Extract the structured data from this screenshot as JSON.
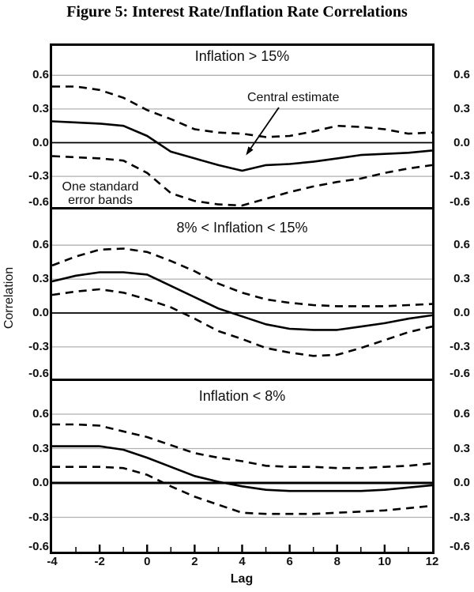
{
  "figure_title": "Figure 5: Interest Rate/Inflation Rate Correlations",
  "axes": {
    "ylabel": "Correlation",
    "xlabel": "Lag",
    "y_ticks": [
      "0.6",
      "0.3",
      "0.0",
      "-0.3",
      "-0.6"
    ],
    "y_tick_values": [
      0.6,
      0.3,
      0.0,
      -0.3,
      -0.6
    ],
    "x_tick_labels": [
      "-4",
      "-2",
      "0",
      "2",
      "4",
      "6",
      "8",
      "10",
      "12"
    ],
    "x_tick_values": [
      -4,
      -2,
      0,
      2,
      4,
      6,
      8,
      10,
      12
    ]
  },
  "annotations": {
    "central_estimate": "Central estimate",
    "error_bands_line1": "One standard",
    "error_bands_line2": "error bands"
  },
  "colors": {
    "line": "#000000",
    "grid": "#b0b0b0",
    "text": "#111111",
    "background": "#ffffff"
  },
  "chart_data": [
    {
      "type": "line",
      "title": "Inflation > 15%",
      "xlabel": "Lag",
      "ylabel": "Correlation",
      "xlim": [
        -4,
        12
      ],
      "ylim": [
        -0.6,
        0.6
      ],
      "x": [
        -4,
        -3,
        -2,
        -1,
        0,
        1,
        2,
        3,
        4,
        5,
        6,
        7,
        8,
        9,
        10,
        11,
        12
      ],
      "series": [
        {
          "name": "central_estimate",
          "style": "solid",
          "values": [
            0.19,
            0.18,
            0.17,
            0.15,
            0.06,
            -0.08,
            -0.14,
            -0.2,
            -0.25,
            -0.2,
            -0.19,
            -0.17,
            -0.14,
            -0.11,
            -0.1,
            -0.09,
            -0.07
          ]
        },
        {
          "name": "upper_one_std_error_band",
          "style": "dashed",
          "values": [
            0.5,
            0.5,
            0.47,
            0.4,
            0.29,
            0.21,
            0.12,
            0.09,
            0.08,
            0.05,
            0.06,
            0.1,
            0.15,
            0.14,
            0.12,
            0.08,
            0.09
          ]
        },
        {
          "name": "lower_one_std_error_band",
          "style": "dashed",
          "values": [
            -0.12,
            -0.13,
            -0.14,
            -0.16,
            -0.27,
            -0.45,
            -0.52,
            -0.55,
            -0.56,
            -0.5,
            -0.44,
            -0.39,
            -0.35,
            -0.32,
            -0.27,
            -0.23,
            -0.2
          ]
        }
      ]
    },
    {
      "type": "line",
      "title": "8% < Inflation < 15%",
      "xlabel": "Lag",
      "ylabel": "Correlation",
      "xlim": [
        -4,
        12
      ],
      "ylim": [
        -0.6,
        0.6
      ],
      "x": [
        -4,
        -3,
        -2,
        -1,
        0,
        1,
        2,
        3,
        4,
        5,
        6,
        7,
        8,
        9,
        10,
        11,
        12
      ],
      "series": [
        {
          "name": "central_estimate",
          "style": "solid",
          "values": [
            0.28,
            0.33,
            0.36,
            0.36,
            0.34,
            0.24,
            0.14,
            0.04,
            -0.03,
            -0.1,
            -0.14,
            -0.15,
            -0.15,
            -0.12,
            -0.09,
            -0.05,
            -0.02
          ]
        },
        {
          "name": "upper_one_std_error_band",
          "style": "dashed",
          "values": [
            0.42,
            0.5,
            0.56,
            0.57,
            0.54,
            0.46,
            0.37,
            0.26,
            0.18,
            0.12,
            0.09,
            0.07,
            0.06,
            0.06,
            0.06,
            0.07,
            0.08
          ]
        },
        {
          "name": "lower_one_std_error_band",
          "style": "dashed",
          "values": [
            0.16,
            0.19,
            0.21,
            0.18,
            0.12,
            0.05,
            -0.05,
            -0.16,
            -0.23,
            -0.31,
            -0.35,
            -0.38,
            -0.37,
            -0.31,
            -0.24,
            -0.17,
            -0.12
          ]
        }
      ]
    },
    {
      "type": "line",
      "title": "Inflation < 8%",
      "xlabel": "Lag",
      "ylabel": "Correlation",
      "xlim": [
        -4,
        12
      ],
      "ylim": [
        -0.6,
        0.6
      ],
      "x": [
        -4,
        -3,
        -2,
        -1,
        0,
        1,
        2,
        3,
        4,
        5,
        6,
        7,
        8,
        9,
        10,
        11,
        12
      ],
      "series": [
        {
          "name": "central_estimate",
          "style": "solid",
          "values": [
            0.32,
            0.32,
            0.32,
            0.29,
            0.22,
            0.14,
            0.06,
            0.01,
            -0.03,
            -0.06,
            -0.07,
            -0.07,
            -0.07,
            -0.07,
            -0.06,
            -0.04,
            -0.02
          ]
        },
        {
          "name": "upper_one_std_error_band",
          "style": "dashed",
          "values": [
            0.51,
            0.51,
            0.5,
            0.45,
            0.4,
            0.33,
            0.26,
            0.22,
            0.19,
            0.15,
            0.14,
            0.14,
            0.13,
            0.13,
            0.14,
            0.15,
            0.17
          ]
        },
        {
          "name": "lower_one_std_error_band",
          "style": "dashed",
          "values": [
            0.14,
            0.14,
            0.14,
            0.13,
            0.07,
            -0.03,
            -0.12,
            -0.19,
            -0.26,
            -0.27,
            -0.27,
            -0.27,
            -0.26,
            -0.25,
            -0.24,
            -0.22,
            -0.2
          ]
        }
      ]
    }
  ]
}
